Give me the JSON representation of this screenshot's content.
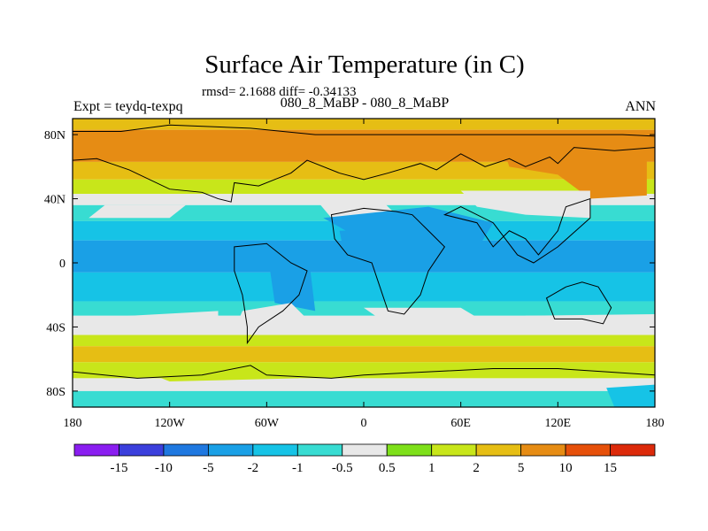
{
  "chart_data": {
    "type": "heatmap",
    "title": "Surface Air Temperature (in C)",
    "stats_text": "rmsd= 2.1688 diff= -0.34133",
    "subtitle": "080_8_MaBP - 080_8_MaBP",
    "left_label": "Expt = teydq-texpq",
    "right_label": "ANN",
    "xlim": [
      -180,
      180
    ],
    "ylim": [
      -90,
      90
    ],
    "x_ticks": [
      {
        "value": -180,
        "label": "180"
      },
      {
        "value": -120,
        "label": "120W"
      },
      {
        "value": -60,
        "label": "60W"
      },
      {
        "value": 0,
        "label": "0"
      },
      {
        "value": 60,
        "label": "60E"
      },
      {
        "value": 120,
        "label": "120E"
      },
      {
        "value": 180,
        "label": "180"
      }
    ],
    "y_ticks": [
      {
        "value": 80,
        "label": "80N"
      },
      {
        "value": 40,
        "label": "40N"
      },
      {
        "value": 0,
        "label": "0"
      },
      {
        "value": -40,
        "label": "40S"
      },
      {
        "value": -80,
        "label": "80S"
      }
    ],
    "colorbar": {
      "boundaries": [
        "-15",
        "-10",
        "-5",
        "-2",
        "-1",
        "-0.5",
        "0.5",
        "1",
        "2",
        "5",
        "10",
        "15"
      ],
      "colors": [
        "#8a1ef0",
        "#3b3fdc",
        "#1f78e0",
        "#1aa0e6",
        "#16c3e6",
        "#38dcd2",
        "#e8e8e8",
        "#7ee01a",
        "#c8e61a",
        "#e6be14",
        "#e68c14",
        "#e6500a",
        "#dc2a0a"
      ]
    },
    "bands": [
      {
        "lat_top": 90,
        "lat_bottom": 83,
        "value": 3
      },
      {
        "lat_top": 83,
        "lat_bottom": 63,
        "value": 6
      },
      {
        "lat_top": 63,
        "lat_bottom": 52,
        "value": 3
      },
      {
        "lat_top": 52,
        "lat_bottom": 43,
        "value": 1.5
      },
      {
        "lat_top": 43,
        "lat_bottom": 36,
        "value": 0
      },
      {
        "lat_top": 36,
        "lat_bottom": 26,
        "value": -0.8
      },
      {
        "lat_top": 26,
        "lat_bottom": 14,
        "value": -1.5
      },
      {
        "lat_top": 14,
        "lat_bottom": -6,
        "value": -3
      },
      {
        "lat_top": -6,
        "lat_bottom": -24,
        "value": -1.5
      },
      {
        "lat_top": -24,
        "lat_bottom": -33,
        "value": -0.8
      },
      {
        "lat_top": -33,
        "lat_bottom": -45,
        "value": 0
      },
      {
        "lat_top": -45,
        "lat_bottom": -52,
        "value": 1.5
      },
      {
        "lat_top": -52,
        "lat_bottom": -62,
        "value": 3
      },
      {
        "lat_top": -62,
        "lat_bottom": -72,
        "value": 1.5
      },
      {
        "lat_top": -72,
        "lat_bottom": -80,
        "value": 0
      },
      {
        "lat_top": -80,
        "lat_bottom": -90,
        "value": -0.8
      }
    ],
    "regions": [
      {
        "name": "orange-north-east",
        "value": 6,
        "points": [
          [
            85,
            75
          ],
          [
            175,
            75
          ],
          [
            175,
            42
          ],
          [
            140,
            40
          ],
          [
            120,
            55
          ],
          [
            90,
            60
          ]
        ]
      },
      {
        "name": "white-asia",
        "value": 0,
        "points": [
          [
            60,
            45
          ],
          [
            140,
            45
          ],
          [
            140,
            28
          ],
          [
            100,
            30
          ],
          [
            70,
            35
          ]
        ]
      },
      {
        "name": "white-atlantic",
        "value": 0,
        "points": [
          [
            -30,
            40
          ],
          [
            10,
            40
          ],
          [
            20,
            30
          ],
          [
            -20,
            28
          ]
        ]
      },
      {
        "name": "white-pacific",
        "value": 0,
        "points": [
          [
            -160,
            36
          ],
          [
            -110,
            36
          ],
          [
            -120,
            28
          ],
          [
            -170,
            28
          ]
        ]
      },
      {
        "name": "blue-central-north",
        "value": -3,
        "points": [
          [
            -25,
            28
          ],
          [
            40,
            35
          ],
          [
            80,
            25
          ],
          [
            70,
            8
          ],
          [
            10,
            8
          ]
        ]
      },
      {
        "name": "blue-central",
        "value": -5,
        "points": [
          [
            -15,
            20
          ],
          [
            30,
            22
          ],
          [
            25,
            -5
          ],
          [
            -10,
            -5
          ]
        ]
      },
      {
        "name": "blue-america",
        "value": -5,
        "points": [
          [
            -60,
            10
          ],
          [
            -35,
            12
          ],
          [
            -30,
            -30
          ],
          [
            -55,
            -25
          ]
        ]
      },
      {
        "name": "white-south-america",
        "value": 0,
        "points": [
          [
            -75,
            -30
          ],
          [
            -45,
            -25
          ],
          [
            -30,
            -40
          ],
          [
            -60,
            -45
          ],
          [
            -80,
            -42
          ]
        ]
      },
      {
        "name": "white-south-atlantic",
        "value": 0,
        "points": [
          [
            0,
            -28
          ],
          [
            60,
            -28
          ],
          [
            80,
            -40
          ],
          [
            20,
            -42
          ]
        ]
      },
      {
        "name": "white-south-pacific",
        "value": 0,
        "points": [
          [
            -180,
            -35
          ],
          [
            -90,
            -30
          ],
          [
            -90,
            -40
          ],
          [
            -180,
            -42
          ]
        ]
      },
      {
        "name": "white-south-indian",
        "value": 0,
        "points": [
          [
            100,
            -33
          ],
          [
            180,
            -32
          ],
          [
            180,
            -45
          ],
          [
            110,
            -45
          ]
        ]
      },
      {
        "name": "green-south-ocean",
        "value": 1.5,
        "points": [
          [
            -140,
            -66
          ],
          [
            -60,
            -64
          ],
          [
            -40,
            -72
          ],
          [
            -120,
            -74
          ]
        ]
      },
      {
        "name": "blue-antarctic-east",
        "value": -1.5,
        "points": [
          [
            150,
            -78
          ],
          [
            180,
            -76
          ],
          [
            180,
            -90
          ],
          [
            155,
            -90
          ]
        ]
      }
    ],
    "coastlines": [
      {
        "name": "northern-land",
        "points": [
          [
            -180,
            82
          ],
          [
            -150,
            82
          ],
          [
            -120,
            86
          ],
          [
            -70,
            84
          ],
          [
            -30,
            80
          ],
          [
            40,
            80
          ],
          [
            110,
            80
          ],
          [
            160,
            80
          ],
          [
            180,
            79
          ],
          [
            180,
            72
          ],
          [
            155,
            70
          ],
          [
            130,
            72
          ],
          [
            120,
            62
          ],
          [
            115,
            66
          ],
          [
            100,
            60
          ],
          [
            90,
            65
          ],
          [
            75,
            60
          ],
          [
            60,
            68
          ],
          [
            45,
            58
          ],
          [
            35,
            62
          ],
          [
            15,
            56
          ],
          [
            0,
            52
          ],
          [
            -15,
            56
          ],
          [
            -35,
            64
          ],
          [
            -45,
            56
          ],
          [
            -55,
            52
          ],
          [
            -65,
            48
          ],
          [
            -80,
            50
          ],
          [
            -82,
            38
          ],
          [
            -90,
            40
          ],
          [
            -100,
            44
          ],
          [
            -120,
            46
          ],
          [
            -145,
            58
          ],
          [
            -165,
            65
          ],
          [
            -180,
            64
          ]
        ]
      },
      {
        "name": "africa",
        "points": [
          [
            -20,
            30
          ],
          [
            0,
            34
          ],
          [
            20,
            32
          ],
          [
            30,
            30
          ],
          [
            40,
            20
          ],
          [
            50,
            10
          ],
          [
            40,
            -5
          ],
          [
            35,
            -20
          ],
          [
            25,
            -32
          ],
          [
            15,
            -30
          ],
          [
            10,
            -15
          ],
          [
            5,
            0
          ],
          [
            -10,
            5
          ],
          [
            -18,
            15
          ]
        ]
      },
      {
        "name": "south-america",
        "points": [
          [
            -80,
            10
          ],
          [
            -60,
            12
          ],
          [
            -45,
            0
          ],
          [
            -35,
            -5
          ],
          [
            -40,
            -20
          ],
          [
            -50,
            -30
          ],
          [
            -65,
            -40
          ],
          [
            -72,
            -50
          ],
          [
            -72,
            -40
          ],
          [
            -75,
            -20
          ],
          [
            -80,
            -5
          ]
        ]
      },
      {
        "name": "asia-south",
        "points": [
          [
            50,
            30
          ],
          [
            70,
            25
          ],
          [
            80,
            10
          ],
          [
            90,
            20
          ],
          [
            100,
            15
          ],
          [
            108,
            5
          ],
          [
            120,
            20
          ],
          [
            125,
            35
          ],
          [
            140,
            40
          ],
          [
            140,
            28
          ],
          [
            120,
            10
          ],
          [
            105,
            0
          ],
          [
            95,
            5
          ],
          [
            80,
            25
          ],
          [
            60,
            35
          ]
        ]
      },
      {
        "name": "australia",
        "points": [
          [
            113,
            -22
          ],
          [
            125,
            -15
          ],
          [
            135,
            -12
          ],
          [
            145,
            -15
          ],
          [
            153,
            -28
          ],
          [
            148,
            -38
          ],
          [
            135,
            -35
          ],
          [
            118,
            -35
          ]
        ]
      },
      {
        "name": "antarctica",
        "points": [
          [
            -180,
            -68
          ],
          [
            -140,
            -72
          ],
          [
            -100,
            -70
          ],
          [
            -70,
            -64
          ],
          [
            -60,
            -70
          ],
          [
            -20,
            -72
          ],
          [
            0,
            -70
          ],
          [
            40,
            -68
          ],
          [
            80,
            -66
          ],
          [
            120,
            -66
          ],
          [
            150,
            -68
          ],
          [
            180,
            -70
          ],
          [
            180,
            -90
          ],
          [
            -180,
            -90
          ]
        ]
      }
    ]
  }
}
